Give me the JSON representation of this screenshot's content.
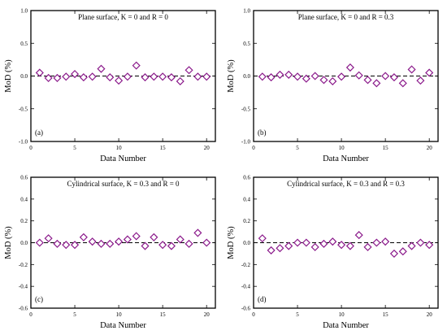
{
  "colors": {
    "marker": "#8b1a8b",
    "axis": "#000000",
    "background": "#ffffff"
  },
  "chart_data": [
    {
      "type": "scatter",
      "panel_label": "(a)",
      "title": "Plane surface, K = 0 and R = 0",
      "xlabel": "Data Number",
      "ylabel": "MoD (%)",
      "xlim": [
        0,
        21
      ],
      "ylim": [
        -1.0,
        1.0
      ],
      "xticks": [
        0,
        5,
        10,
        15,
        20
      ],
      "yticks": [
        -1.0,
        -0.5,
        0.0,
        0.5,
        1.0
      ],
      "ytick_labels": [
        "-1.0",
        "-0.5",
        "0.0",
        "0.5",
        "1.0"
      ],
      "reference_line": 0,
      "x": [
        1,
        2,
        3,
        4,
        5,
        6,
        7,
        8,
        9,
        10,
        11,
        12,
        13,
        14,
        15,
        16,
        17,
        18,
        19,
        20
      ],
      "y": [
        0.05,
        -0.03,
        -0.03,
        -0.01,
        0.03,
        -0.02,
        -0.01,
        0.11,
        -0.02,
        -0.07,
        -0.01,
        0.16,
        -0.02,
        -0.01,
        -0.01,
        -0.02,
        -0.08,
        0.09,
        -0.01,
        -0.01
      ]
    },
    {
      "type": "scatter",
      "panel_label": "(b)",
      "title": "Plane surface, K = 0 and R = 0.3",
      "xlabel": "Data Number",
      "ylabel": "MoD (%)",
      "xlim": [
        0,
        21
      ],
      "ylim": [
        -1.0,
        1.0
      ],
      "xticks": [
        0,
        5,
        10,
        15,
        20
      ],
      "yticks": [
        -1.0,
        -0.5,
        0.0,
        0.5,
        1.0
      ],
      "ytick_labels": [
        "-1.0",
        "-0.5",
        "0.0",
        "0.5",
        "1.0"
      ],
      "reference_line": 0,
      "x": [
        1,
        2,
        3,
        4,
        5,
        6,
        7,
        8,
        9,
        10,
        11,
        12,
        13,
        14,
        15,
        16,
        17,
        18,
        19,
        20
      ],
      "y": [
        -0.01,
        -0.02,
        0.02,
        0.02,
        -0.01,
        -0.04,
        0.0,
        -0.06,
        -0.08,
        -0.01,
        0.13,
        0.01,
        -0.06,
        -0.11,
        0.0,
        -0.02,
        -0.11,
        0.1,
        -0.07,
        0.05
      ]
    },
    {
      "type": "scatter",
      "panel_label": "(c)",
      "title": "Cylindrical surface, K = 0.3 and R = 0",
      "xlabel": "Data Number",
      "ylabel": "MoD (%)",
      "xlim": [
        0,
        21
      ],
      "ylim": [
        -0.6,
        0.6
      ],
      "xticks": [
        0,
        5,
        10,
        15,
        20
      ],
      "yticks": [
        -0.6,
        -0.4,
        -0.2,
        0.0,
        0.2,
        0.4,
        0.6
      ],
      "ytick_labels": [
        "-0.6",
        "-0.4",
        "-0.2",
        "0.0",
        "0.2",
        "0.4",
        "0.6"
      ],
      "reference_line": 0,
      "x": [
        1,
        2,
        3,
        4,
        5,
        6,
        7,
        8,
        9,
        10,
        11,
        12,
        13,
        14,
        15,
        16,
        17,
        18,
        19,
        20
      ],
      "y": [
        0.0,
        0.04,
        -0.01,
        -0.02,
        -0.02,
        0.05,
        0.01,
        -0.01,
        -0.01,
        0.01,
        0.03,
        0.06,
        -0.03,
        0.05,
        -0.02,
        -0.03,
        0.03,
        -0.01,
        0.09,
        0.0
      ]
    },
    {
      "type": "scatter",
      "panel_label": "(d)",
      "title": "Cylindrical surface, K = 0.3 and R = 0.3",
      "xlabel": "Data Number",
      "ylabel": "MoD (%)",
      "xlim": [
        0,
        21
      ],
      "ylim": [
        -0.6,
        0.6
      ],
      "xticks": [
        0,
        5,
        10,
        15,
        20
      ],
      "yticks": [
        -0.6,
        -0.4,
        -0.2,
        0.0,
        0.2,
        0.4,
        0.6
      ],
      "ytick_labels": [
        "-0.6",
        "-0.4",
        "-0.2",
        "0.0",
        "0.2",
        "0.4",
        "0.6"
      ],
      "reference_line": 0,
      "x": [
        1,
        2,
        3,
        4,
        5,
        6,
        7,
        8,
        9,
        10,
        11,
        12,
        13,
        14,
        15,
        16,
        17,
        18,
        19,
        20
      ],
      "y": [
        0.04,
        -0.07,
        -0.05,
        -0.03,
        0.0,
        0.0,
        -0.04,
        -0.01,
        0.01,
        -0.02,
        -0.03,
        0.07,
        -0.04,
        0.0,
        0.01,
        -0.1,
        -0.08,
        -0.03,
        0.0,
        -0.02
      ]
    }
  ]
}
